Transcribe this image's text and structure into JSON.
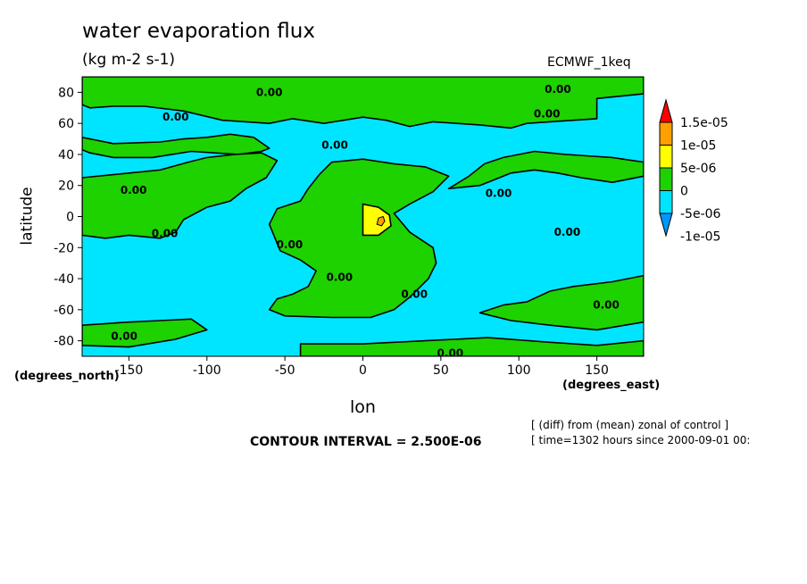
{
  "title": "water evaporation flux",
  "units": "(kg m-2 s-1)",
  "dataset": "ECMWF_1keq",
  "xlabel": "lon",
  "ylabel": "latitude",
  "x_units_label": "(degrees_east)",
  "y_units_label": "(degrees_north)",
  "contour_interval": "CONTOUR INTERVAL = 2.500E-06",
  "note_line1": "[ (diff) from (mean) zonal of control ]",
  "note_line2": "[ time=1302 hours since 2000-09-01 00:",
  "colors": {
    "cyan": "#00e5ff",
    "green": "#1ed200",
    "yellow": "#ffff00",
    "orange": "#ff9f00",
    "blue": "#0096ff",
    "red": "#ff0000"
  },
  "chart_data": {
    "type": "heatmap",
    "title": "water evaporation flux",
    "subtitle": "(kg m-2 s-1)",
    "xlabel": "lon",
    "ylabel": "latitude",
    "xlim": [
      -180,
      180
    ],
    "ylim": [
      -90,
      90
    ],
    "x_ticks": [
      -150,
      -100,
      -50,
      0,
      50,
      100,
      150
    ],
    "y_ticks": [
      -80,
      -60,
      -40,
      -20,
      0,
      20,
      40,
      60,
      80
    ],
    "colorbar": {
      "levels": [
        "1.5e-05",
        "1e-05",
        "5e-06",
        "0",
        "-5e-06",
        "-1e-05"
      ],
      "colors": [
        "#ff0000",
        "#ff9f00",
        "#ffff00",
        "#1ed200",
        "#00e5ff",
        "#0096ff"
      ]
    },
    "contour_labels": [
      {
        "text": "0.00",
        "lon": -60,
        "lat": 80
      },
      {
        "text": "0.00",
        "lon": 125,
        "lat": 82
      },
      {
        "text": "0.00",
        "lon": -120,
        "lat": 64
      },
      {
        "text": "0.00",
        "lon": 118,
        "lat": 66
      },
      {
        "text": "0.00",
        "lon": -18,
        "lat": 46
      },
      {
        "text": "0.00",
        "lon": -147,
        "lat": 17
      },
      {
        "text": "0.00",
        "lon": 87,
        "lat": 15
      },
      {
        "text": "0.00",
        "lon": -127,
        "lat": -11
      },
      {
        "text": "0.00",
        "lon": 131,
        "lat": -10
      },
      {
        "text": "0.00",
        "lon": -47,
        "lat": -18
      },
      {
        "text": "0.00",
        "lon": -15,
        "lat": -39
      },
      {
        "text": "0.00",
        "lon": 33,
        "lat": -50
      },
      {
        "text": "0.00",
        "lon": 156,
        "lat": -57
      },
      {
        "text": "0.00",
        "lon": -153,
        "lat": -77
      },
      {
        "text": "0.00",
        "lon": 56,
        "lat": -88
      }
    ],
    "green_regions": [
      [
        [
          -180,
          90
        ],
        [
          180,
          90
        ],
        [
          180,
          79
        ],
        [
          150,
          76
        ],
        [
          150,
          63
        ],
        [
          105,
          60
        ],
        [
          95,
          57
        ],
        [
          75,
          59
        ],
        [
          45,
          61
        ],
        [
          30,
          58
        ],
        [
          15,
          62
        ],
        [
          0,
          64
        ],
        [
          -25,
          60
        ],
        [
          -45,
          63
        ],
        [
          -60,
          60
        ],
        [
          -75,
          61
        ],
        [
          -90,
          62
        ],
        [
          -115,
          68
        ],
        [
          -140,
          71
        ],
        [
          -160,
          71
        ],
        [
          -175,
          70
        ],
        [
          -180,
          72
        ]
      ],
      [
        [
          -180,
          51
        ],
        [
          -160,
          47
        ],
        [
          -130,
          48
        ],
        [
          -115,
          50
        ],
        [
          -100,
          51
        ],
        [
          -85,
          53
        ],
        [
          -70,
          51
        ],
        [
          -60,
          44
        ],
        [
          -65,
          42
        ],
        [
          -80,
          40
        ],
        [
          -110,
          42
        ],
        [
          -135,
          38
        ],
        [
          -160,
          38
        ],
        [
          -175,
          41
        ],
        [
          -180,
          43
        ]
      ],
      [
        [
          -180,
          25
        ],
        [
          -150,
          28
        ],
        [
          -130,
          30
        ],
        [
          -112,
          35
        ],
        [
          -100,
          38
        ],
        [
          -82,
          40
        ],
        [
          -65,
          41
        ],
        [
          -55,
          36
        ],
        [
          -62,
          25
        ],
        [
          -75,
          18
        ],
        [
          -85,
          10
        ],
        [
          -100,
          6
        ],
        [
          -115,
          -2
        ],
        [
          -120,
          -10
        ],
        [
          -130,
          -14
        ],
        [
          -150,
          -12
        ],
        [
          -165,
          -14
        ],
        [
          -180,
          -12
        ]
      ],
      [
        [
          -20,
          35
        ],
        [
          0,
          37
        ],
        [
          20,
          34
        ],
        [
          40,
          32
        ],
        [
          55,
          26
        ],
        [
          45,
          16
        ],
        [
          30,
          8
        ],
        [
          20,
          2
        ],
        [
          30,
          -10
        ],
        [
          45,
          -20
        ],
        [
          47,
          -30
        ],
        [
          42,
          -40
        ],
        [
          30,
          -52
        ],
        [
          20,
          -60
        ],
        [
          5,
          -65
        ],
        [
          -20,
          -65
        ],
        [
          -50,
          -64
        ],
        [
          -60,
          -60
        ],
        [
          -55,
          -53
        ],
        [
          -45,
          -50
        ],
        [
          -35,
          -45
        ],
        [
          -30,
          -35
        ],
        [
          -40,
          -28
        ],
        [
          -53,
          -22
        ],
        [
          -60,
          -5
        ],
        [
          -55,
          5
        ],
        [
          -40,
          10
        ],
        [
          -35,
          18
        ],
        [
          -28,
          27
        ]
      ],
      [
        [
          55,
          18
        ],
        [
          75,
          20
        ],
        [
          95,
          28
        ],
        [
          110,
          30
        ],
        [
          125,
          28
        ],
        [
          140,
          25
        ],
        [
          160,
          22
        ],
        [
          180,
          26
        ],
        [
          180,
          35
        ],
        [
          160,
          38
        ],
        [
          130,
          40
        ],
        [
          110,
          42
        ],
        [
          90,
          38
        ],
        [
          78,
          34
        ],
        [
          68,
          26
        ]
      ],
      [
        [
          75,
          -62
        ],
        [
          90,
          -57
        ],
        [
          105,
          -55
        ],
        [
          120,
          -48
        ],
        [
          135,
          -45
        ],
        [
          160,
          -42
        ],
        [
          180,
          -38
        ],
        [
          180,
          -68
        ],
        [
          150,
          -73
        ],
        [
          120,
          -70
        ],
        [
          95,
          -67
        ]
      ],
      [
        [
          -180,
          -70
        ],
        [
          -150,
          -68
        ],
        [
          -130,
          -67
        ],
        [
          -110,
          -66
        ],
        [
          -100,
          -73
        ],
        [
          -120,
          -79
        ],
        [
          -150,
          -84
        ],
        [
          -180,
          -83
        ]
      ],
      [
        [
          -40,
          -82
        ],
        [
          0,
          -82
        ],
        [
          40,
          -80
        ],
        [
          80,
          -78
        ],
        [
          120,
          -81
        ],
        [
          150,
          -83
        ],
        [
          180,
          -80
        ],
        [
          180,
          -90
        ],
        [
          -40,
          -90
        ]
      ]
    ],
    "yellow_regions": [
      [
        [
          0,
          8
        ],
        [
          10,
          6
        ],
        [
          17,
          1
        ],
        [
          18,
          -6
        ],
        [
          10,
          -12
        ],
        [
          0,
          -12
        ]
      ]
    ],
    "orange_regions": [
      [
        [
          10,
          -1
        ],
        [
          13,
          0
        ],
        [
          14,
          -3
        ],
        [
          12,
          -6
        ],
        [
          9,
          -5
        ]
      ]
    ]
  }
}
